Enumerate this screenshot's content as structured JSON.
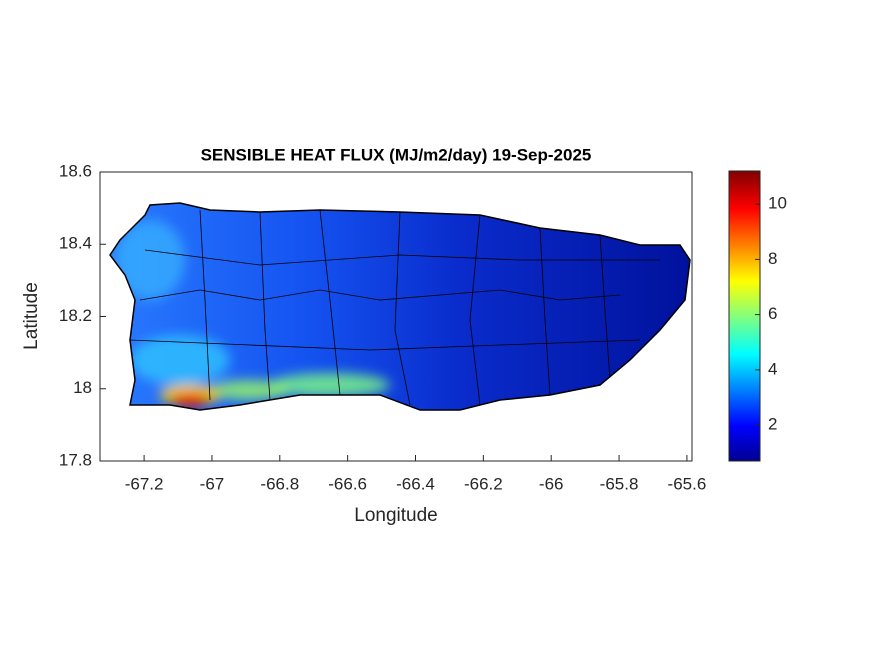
{
  "chart_data": {
    "type": "map",
    "title": "SENSIBLE HEAT FLUX (MJ/m2/day) 19-Sep-2025",
    "x_label": "Longitude",
    "y_label": "Latitude",
    "xlim": [
      -67.33,
      -65.585
    ],
    "xticks": [
      -67.2,
      -67,
      -66.8,
      -66.6,
      -66.4,
      -66.2,
      -66,
      -65.8,
      -65.6
    ],
    "ylim": [
      17.8,
      18.6
    ],
    "yticks": [
      17.8,
      18,
      18.2,
      18.4,
      18.6
    ],
    "colorbar_lim": [
      0.7,
      11.2
    ],
    "colorbar_ticks": [
      2,
      4,
      6,
      8,
      10
    ],
    "colormap": "jet"
  }
}
